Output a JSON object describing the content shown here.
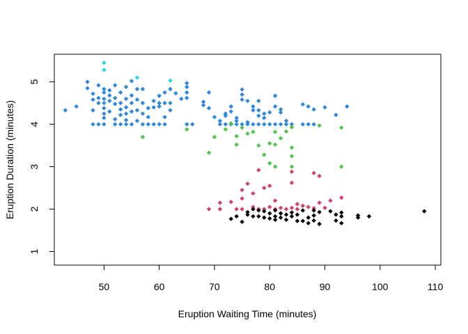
{
  "chart_data": {
    "type": "scatter",
    "title": "",
    "xlabel": "Eruption Waiting Time (minutes)",
    "ylabel": "Eruption Duration (minutes)",
    "xlim": [
      41,
      111
    ],
    "ylim": [
      0.68,
      5.65
    ],
    "xticks": [
      50,
      60,
      70,
      80,
      90,
      100,
      110
    ],
    "yticks": [
      1,
      2,
      3,
      4,
      5
    ],
    "grid": false,
    "legend": "none",
    "marker": "diamond",
    "series": [
      {
        "color": "#2d86e0",
        "points": [
          [
            43,
            4.33
          ],
          [
            45,
            4.42
          ],
          [
            47,
            5.0
          ],
          [
            47,
            4.85
          ],
          [
            48,
            4.72
          ],
          [
            48,
            4.58
          ],
          [
            48,
            4.33
          ],
          [
            48,
            4.0
          ],
          [
            49,
            4.92
          ],
          [
            49,
            4.62
          ],
          [
            49,
            4.5
          ],
          [
            49,
            4.0
          ],
          [
            50,
            4.83
          ],
          [
            50,
            4.75
          ],
          [
            50,
            4.6
          ],
          [
            50,
            4.5
          ],
          [
            50,
            4.38
          ],
          [
            50,
            4.25
          ],
          [
            50,
            4.15
          ],
          [
            50,
            4.0
          ],
          [
            51,
            4.8
          ],
          [
            51,
            4.68
          ],
          [
            51,
            4.55
          ],
          [
            51,
            4.3
          ],
          [
            52,
            4.92
          ],
          [
            52,
            4.62
          ],
          [
            52,
            4.48
          ],
          [
            52,
            4.12
          ],
          [
            52,
            4.0
          ],
          [
            53,
            4.75
          ],
          [
            53,
            4.5
          ],
          [
            53,
            4.35
          ],
          [
            53,
            4.22
          ],
          [
            53,
            4.0
          ],
          [
            54,
            4.88
          ],
          [
            54,
            4.6
          ],
          [
            54,
            4.4
          ],
          [
            54,
            4.25
          ],
          [
            54,
            4.1
          ],
          [
            54,
            4.0
          ],
          [
            55,
            5.02
          ],
          [
            55,
            4.68
          ],
          [
            55,
            4.5
          ],
          [
            55,
            4.3
          ],
          [
            55,
            4.0
          ],
          [
            56,
            4.83
          ],
          [
            56,
            4.58
          ],
          [
            56,
            4.33
          ],
          [
            56,
            4.08
          ],
          [
            57,
            4.83
          ],
          [
            57,
            4.5
          ],
          [
            57,
            4.25
          ],
          [
            57,
            4.0
          ],
          [
            58,
            4.38
          ],
          [
            58,
            4.17
          ],
          [
            58,
            4.0
          ],
          [
            59,
            4.55
          ],
          [
            59,
            4.4
          ],
          [
            59,
            4.0
          ],
          [
            60,
            4.67
          ],
          [
            60,
            4.5
          ],
          [
            60,
            4.42
          ],
          [
            60,
            4.0
          ],
          [
            61,
            4.75
          ],
          [
            61,
            4.5
          ],
          [
            61,
            4.17
          ],
          [
            61,
            4.0
          ],
          [
            62,
            4.83
          ],
          [
            62,
            4.5
          ],
          [
            62,
            4.33
          ],
          [
            63,
            4.73
          ],
          [
            64,
            4.6
          ],
          [
            65,
            4.97
          ],
          [
            65,
            4.88
          ],
          [
            65,
            4.75
          ],
          [
            65,
            4.62
          ],
          [
            65,
            4.0
          ],
          [
            66,
            4.0
          ],
          [
            68,
            4.53
          ],
          [
            68,
            4.45
          ],
          [
            69,
            4.75
          ],
          [
            69,
            4.38
          ],
          [
            70,
            4.17
          ],
          [
            71,
            4.08
          ],
          [
            71,
            4.0
          ],
          [
            72,
            4.25
          ],
          [
            72,
            4.2
          ],
          [
            72,
            4.0
          ],
          [
            73,
            4.3
          ],
          [
            73,
            4.42
          ],
          [
            73,
            4.0
          ],
          [
            74,
            4.15
          ],
          [
            74,
            4.08
          ],
          [
            74,
            4.0
          ],
          [
            75,
            4.82
          ],
          [
            75,
            4.7
          ],
          [
            75,
            4.58
          ],
          [
            75,
            4.0
          ],
          [
            76,
            4.55
          ],
          [
            76,
            4.05
          ],
          [
            76,
            4.0
          ],
          [
            77,
            4.42
          ],
          [
            77,
            4.33
          ],
          [
            77,
            4.0
          ],
          [
            78,
            4.55
          ],
          [
            78,
            4.33
          ],
          [
            78,
            4.2
          ],
          [
            78,
            4.0
          ],
          [
            79,
            4.25
          ],
          [
            79,
            4.15
          ],
          [
            79,
            4.0
          ],
          [
            80,
            4.28
          ],
          [
            80,
            4.0
          ],
          [
            81,
            4.67
          ],
          [
            81,
            4.42
          ],
          [
            81,
            4.0
          ],
          [
            82,
            4.35
          ],
          [
            82,
            4.28
          ],
          [
            82,
            4.0
          ],
          [
            83,
            4.08
          ],
          [
            83,
            4.0
          ],
          [
            84,
            4.0
          ],
          [
            86,
            4.47
          ],
          [
            86,
            4.0
          ],
          [
            87,
            4.42
          ],
          [
            87,
            4.0
          ],
          [
            88,
            4.35
          ],
          [
            88,
            4.0
          ],
          [
            90,
            4.4
          ],
          [
            92,
            4.22
          ],
          [
            94,
            4.42
          ]
        ]
      },
      {
        "color": "#26d9e3",
        "points": [
          [
            50,
            5.45
          ],
          [
            50,
            5.28
          ],
          [
            56,
            5.1
          ],
          [
            62,
            5.03
          ]
        ]
      },
      {
        "color": "#4fc44a",
        "points": [
          [
            57,
            3.7
          ],
          [
            65,
            3.88
          ],
          [
            69,
            3.33
          ],
          [
            70,
            3.7
          ],
          [
            72,
            3.88
          ],
          [
            73,
            4.02
          ],
          [
            74,
            3.72
          ],
          [
            74,
            3.52
          ],
          [
            75,
            3.92
          ],
          [
            76,
            3.78
          ],
          [
            77,
            3.82
          ],
          [
            78,
            3.5
          ],
          [
            79,
            3.28
          ],
          [
            80,
            3.55
          ],
          [
            80,
            3.08
          ],
          [
            81,
            3.82
          ],
          [
            81,
            3.52
          ],
          [
            81,
            3.0
          ],
          [
            82,
            3.67
          ],
          [
            83,
            3.83
          ],
          [
            84,
            3.93
          ],
          [
            84,
            3.45
          ],
          [
            84,
            3.25
          ],
          [
            84,
            3.0
          ],
          [
            89,
            3.97
          ],
          [
            93,
            3.92
          ],
          [
            93,
            3.0
          ]
        ]
      },
      {
        "color": "#d14265",
        "points": [
          [
            69,
            2.0
          ],
          [
            71,
            2.15
          ],
          [
            71,
            2.0
          ],
          [
            73,
            2.17
          ],
          [
            74,
            2.0
          ],
          [
            75,
            2.45
          ],
          [
            75,
            2.25
          ],
          [
            75,
            2.0
          ],
          [
            76,
            2.6
          ],
          [
            77,
            2.37
          ],
          [
            77,
            2.05
          ],
          [
            78,
            2.92
          ],
          [
            78,
            2.0
          ],
          [
            79,
            2.5
          ],
          [
            79,
            2.0
          ],
          [
            80,
            2.55
          ],
          [
            80,
            2.05
          ],
          [
            81,
            2.2
          ],
          [
            81,
            2.0
          ],
          [
            82,
            2.03
          ],
          [
            83,
            2.0
          ],
          [
            84,
            2.88
          ],
          [
            84,
            2.62
          ],
          [
            84,
            2.03
          ],
          [
            85,
            2.12
          ],
          [
            85,
            2.0
          ],
          [
            86,
            2.08
          ],
          [
            87,
            2.05
          ],
          [
            88,
            2.85
          ],
          [
            88,
            2.02
          ],
          [
            89,
            2.78
          ],
          [
            89,
            2.15
          ],
          [
            90,
            2.03
          ],
          [
            91,
            2.2
          ],
          [
            93,
            2.27
          ]
        ]
      },
      {
        "color": "#000000",
        "points": [
          [
            73,
            1.77
          ],
          [
            74,
            1.83
          ],
          [
            75,
            1.7
          ],
          [
            76,
            1.93
          ],
          [
            76,
            1.87
          ],
          [
            77,
            2.0
          ],
          [
            77,
            1.83
          ],
          [
            78,
            1.97
          ],
          [
            78,
            1.83
          ],
          [
            79,
            1.95
          ],
          [
            79,
            1.8
          ],
          [
            80,
            1.9
          ],
          [
            80,
            1.78
          ],
          [
            81,
            1.97
          ],
          [
            81,
            1.83
          ],
          [
            81,
            1.75
          ],
          [
            82,
            1.9
          ],
          [
            82,
            1.8
          ],
          [
            83,
            1.87
          ],
          [
            83,
            1.75
          ],
          [
            84,
            1.92
          ],
          [
            84,
            1.83
          ],
          [
            85,
            1.87
          ],
          [
            85,
            1.72
          ],
          [
            86,
            1.97
          ],
          [
            86,
            1.72
          ],
          [
            87,
            1.8
          ],
          [
            87,
            1.67
          ],
          [
            88,
            1.97
          ],
          [
            88,
            1.85
          ],
          [
            88,
            1.73
          ],
          [
            89,
            1.93
          ],
          [
            89,
            1.65
          ],
          [
            91,
            1.95
          ],
          [
            92,
            1.87
          ],
          [
            92,
            1.73
          ],
          [
            93,
            1.92
          ],
          [
            93,
            1.83
          ],
          [
            93,
            1.67
          ],
          [
            96,
            1.85
          ],
          [
            96,
            1.8
          ],
          [
            98,
            1.83
          ],
          [
            108,
            1.95
          ]
        ]
      }
    ]
  }
}
